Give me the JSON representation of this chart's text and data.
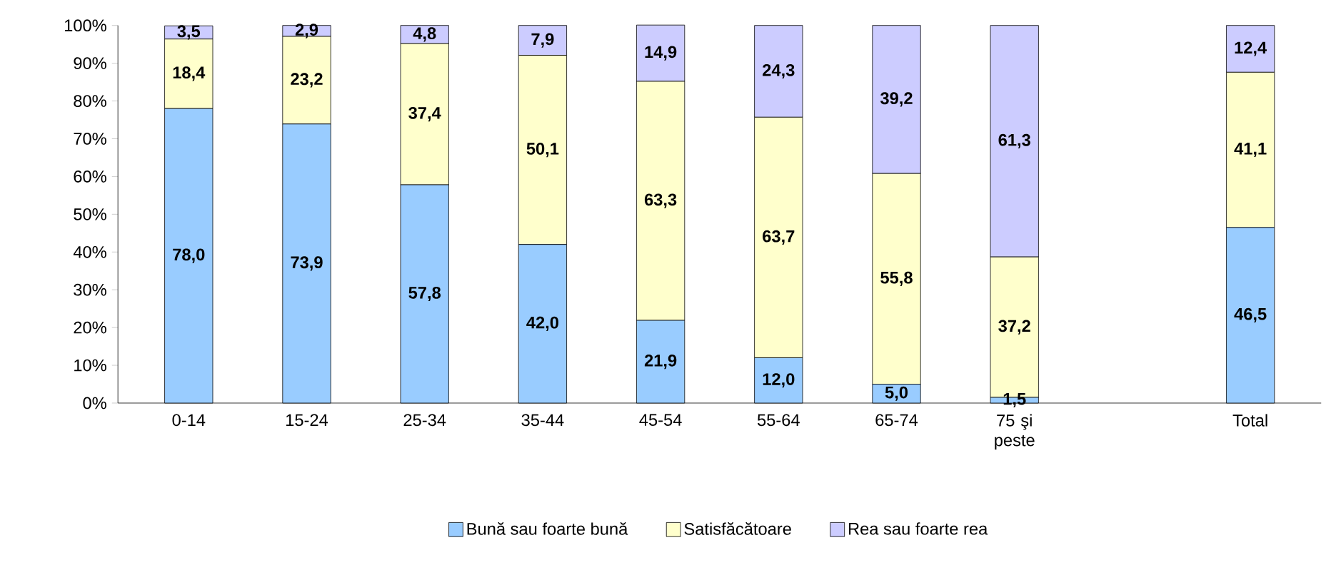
{
  "chart_data": {
    "type": "bar",
    "stacked": true,
    "categories": [
      "0-14",
      "15-24",
      "25-34",
      "35-44",
      "45-54",
      "55-64",
      "65-74",
      "75 şi peste",
      null,
      "Total"
    ],
    "series": [
      {
        "name": "Bună sau foarte bună",
        "color": "#99ccff",
        "values": [
          78.0,
          73.9,
          57.8,
          42.0,
          21.9,
          12.0,
          5.0,
          1.5,
          null,
          46.5
        ],
        "value_labels": [
          "78,0",
          "73,9",
          "57,8",
          "42,0",
          "21,9",
          "12,0",
          "5,0",
          "1,5",
          null,
          "46,5"
        ]
      },
      {
        "name": "Satisfăcătoare",
        "color": "#ffffcc",
        "values": [
          18.4,
          23.2,
          37.4,
          50.1,
          63.3,
          63.7,
          55.8,
          37.2,
          null,
          41.1
        ],
        "value_labels": [
          "18,4",
          "23,2",
          "37,4",
          "50,1",
          "63,3",
          "63,7",
          "55,8",
          "37,2",
          null,
          "41,1"
        ]
      },
      {
        "name": "Rea sau foarte rea",
        "color": "#ccccff",
        "values": [
          3.5,
          2.9,
          4.8,
          7.9,
          14.9,
          24.3,
          39.2,
          61.3,
          null,
          12.4
        ],
        "value_labels": [
          "3,5",
          "2,9",
          "4,8",
          "7,9",
          "14,9",
          "24,3",
          "39,2",
          "61,3",
          null,
          "12,4"
        ]
      }
    ],
    "ylim": [
      0,
      100
    ],
    "yticks": [
      {
        "value": 0,
        "label": "0%"
      },
      {
        "value": 10,
        "label": "10%"
      },
      {
        "value": 20,
        "label": "20%"
      },
      {
        "value": 30,
        "label": "30%"
      },
      {
        "value": 40,
        "label": "40%"
      },
      {
        "value": 50,
        "label": "50%"
      },
      {
        "value": 60,
        "label": "60%"
      },
      {
        "value": 70,
        "label": "70%"
      },
      {
        "value": 80,
        "label": "80%"
      },
      {
        "value": 90,
        "label": "90%"
      },
      {
        "value": 100,
        "label": "100%"
      }
    ],
    "legend": "bottom"
  }
}
